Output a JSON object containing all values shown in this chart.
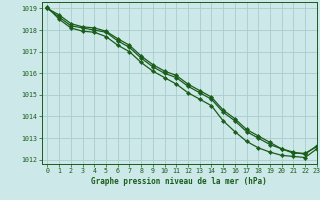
{
  "xlabel": "Graphe pression niveau de la mer (hPa)",
  "bg_color": "#cce8e8",
  "grid_color": "#aacccc",
  "line_color": "#1a5c1a",
  "xlim": [
    -0.5,
    23
  ],
  "ylim": [
    1011.8,
    1019.3
  ],
  "yticks": [
    1012,
    1013,
    1014,
    1015,
    1016,
    1017,
    1018,
    1019
  ],
  "xticks": [
    0,
    1,
    2,
    3,
    4,
    5,
    6,
    7,
    8,
    9,
    10,
    11,
    12,
    13,
    14,
    15,
    16,
    17,
    18,
    19,
    20,
    21,
    22,
    23
  ],
  "series": [
    [
      1019.0,
      1018.6,
      1018.2,
      1018.1,
      1018.0,
      1017.9,
      1017.5,
      1017.2,
      1016.7,
      1016.3,
      1016.0,
      1015.8,
      1015.4,
      1015.1,
      1014.8,
      1014.2,
      1013.8,
      1013.3,
      1013.0,
      1012.7,
      1012.5,
      1012.3,
      1012.3,
      1012.6
    ],
    [
      1019.0,
      1018.7,
      1018.3,
      1018.15,
      1018.1,
      1017.95,
      1017.6,
      1017.3,
      1016.8,
      1016.4,
      1016.1,
      1015.9,
      1015.5,
      1015.2,
      1014.9,
      1014.3,
      1013.9,
      1013.4,
      1013.1,
      1012.8,
      1012.5,
      1012.35,
      1012.25,
      1012.65
    ],
    [
      1019.05,
      1018.5,
      1018.1,
      1017.95,
      1017.9,
      1017.7,
      1017.3,
      1017.0,
      1016.5,
      1016.1,
      1015.8,
      1015.5,
      1015.1,
      1014.8,
      1014.5,
      1013.8,
      1013.3,
      1012.85,
      1012.55,
      1012.35,
      1012.2,
      1012.15,
      1012.1,
      1012.5
    ]
  ]
}
